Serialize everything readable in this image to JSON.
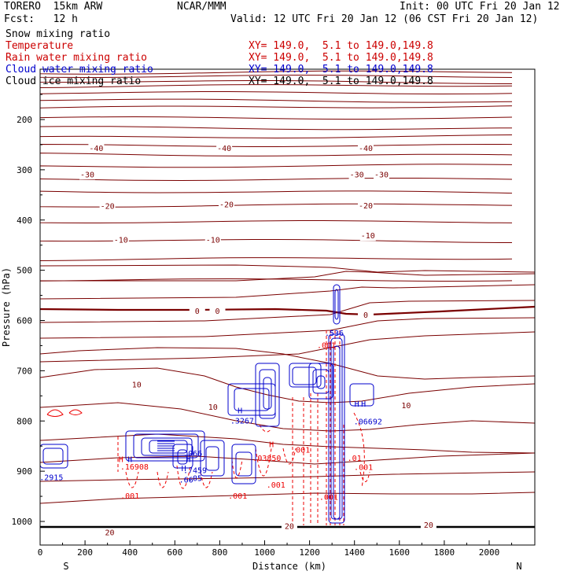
{
  "header": {
    "model": "TORERO  15km ARW",
    "center": "NCAR/MMM",
    "init": "Init: 00 UTC Fri 20 Jan 12",
    "fcst": "Fcst:   12 h",
    "valid": "Valid: 12 UTC Fri 20 Jan 12 (06 CST Fri 20 Jan 12)"
  },
  "fields": [
    {
      "name": "Snow mixing ratio",
      "xy": "",
      "color": "#000000"
    },
    {
      "name": "Temperature",
      "xy": "XY= 149.0,  5.1 to 149.0,149.8",
      "color": "#cc0000"
    },
    {
      "name": "Rain water mixing ratio",
      "xy": "XY= 149.0,  5.1 to 149.0,149.8",
      "color": "#cc0000"
    },
    {
      "name": "Cloud water mixing ratio",
      "xy": "XY= 149.0,  5.1 to 149.0,149.8",
      "color": "#0000cc"
    },
    {
      "name": "Cloud ice mixing ratio",
      "xy": "XY= 149.0,  5.1 to 149.0,149.8",
      "color": "#000000"
    }
  ],
  "colors": {
    "temperature": "#7a0000",
    "zero_isotherm": "#7a0000",
    "rain": "#ee0000",
    "cloud": "#0000cc",
    "axis": "#000000"
  },
  "chart_data": {
    "type": "contour",
    "xlabel": "Distance (km)",
    "ylabel": "Pressure (hPa)",
    "xlim": [
      0,
      2200
    ],
    "ylim": [
      1050,
      100
    ],
    "xticks": [
      0,
      200,
      400,
      600,
      800,
      1000,
      1200,
      1400,
      1600,
      1800,
      2000
    ],
    "yticks": [
      200,
      300,
      400,
      500,
      600,
      700,
      800,
      900,
      1000
    ],
    "direction_labels": [
      "S",
      "N"
    ],
    "temperature_isotherm_labels": [
      {
        "value": "-40",
        "x": 250,
        "p": 258
      },
      {
        "value": "-40",
        "x": 820,
        "p": 258
      },
      {
        "value": "-40",
        "x": 1450,
        "p": 258
      },
      {
        "value": "-30",
        "x": 210,
        "p": 310
      },
      {
        "value": "-30",
        "x": 1410,
        "p": 310
      },
      {
        "value": "-30",
        "x": 1520,
        "p": 310
      },
      {
        "value": "-20",
        "x": 300,
        "p": 373
      },
      {
        "value": "-20",
        "x": 830,
        "p": 370
      },
      {
        "value": "-20",
        "x": 1450,
        "p": 372
      },
      {
        "value": "-10",
        "x": 360,
        "p": 440
      },
      {
        "value": "-10",
        "x": 770,
        "p": 440
      },
      {
        "value": "-10",
        "x": 1460,
        "p": 432
      },
      {
        "value": "0",
        "x": 700,
        "p": 582
      },
      {
        "value": "0",
        "x": 790,
        "p": 582
      },
      {
        "value": "0",
        "x": 1450,
        "p": 590
      },
      {
        "value": "10",
        "x": 430,
        "p": 728
      },
      {
        "value": "10",
        "x": 770,
        "p": 773
      },
      {
        "value": "10",
        "x": 1630,
        "p": 770
      },
      {
        "value": "20",
        "x": 310,
        "p": 1023
      },
      {
        "value": "20",
        "x": 1110,
        "p": 1010
      },
      {
        "value": "20",
        "x": 1730,
        "p": 1008
      }
    ],
    "rain_labels": [
      {
        "text": ".001",
        "x": 400,
        "p": 950
      },
      {
        "text": ".001",
        "x": 880,
        "p": 950
      },
      {
        "text": ".001",
        "x": 1050,
        "p": 928
      },
      {
        "text": ".001",
        "x": 1160,
        "p": 858
      },
      {
        "text": ".001",
        "x": 1285,
        "p": 952
      },
      {
        "text": ".001",
        "x": 1440,
        "p": 893
      },
      {
        "text": ".001",
        "x": 1275,
        "p": 650
      },
      {
        "text": ".01",
        "x": 1400,
        "p": 875
      },
      {
        "text": ".16908",
        "x": 420,
        "p": 892
      },
      {
        "text": ".03850",
        "x": 1010,
        "p": 875
      },
      {
        "text": "H",
        "x": 360,
        "p": 877
      },
      {
        "text": "H",
        "x": 1030,
        "p": 847
      }
    ],
    "cloud_labels": [
      {
        "text": "H",
        "x": 400,
        "p": 877
      },
      {
        "text": "H",
        "x": 660,
        "p": 877
      },
      {
        "text": "H",
        "x": 890,
        "p": 780
      },
      {
        "text": "H",
        "x": 1410,
        "p": 767
      },
      {
        "text": "H",
        "x": 1440,
        "p": 767
      },
      {
        "text": "H",
        "x": 640,
        "p": 895
      },
      {
        "text": ".7459",
        "x": 690,
        "p": 899
      },
      {
        "text": ".3267",
        "x": 900,
        "p": 800
      },
      {
        "text": ".066",
        "x": 680,
        "p": 865
      },
      {
        "text": ".05",
        "x": 690,
        "p": 915
      },
      {
        "text": ".06692",
        "x": 1460,
        "p": 802
      },
      {
        "text": ".536",
        "x": 1310,
        "p": 626
      },
      {
        "text": ".2915",
        "x": 50,
        "p": 913
      },
      {
        "text": ".66",
        "x": 650,
        "p": 918
      }
    ]
  }
}
